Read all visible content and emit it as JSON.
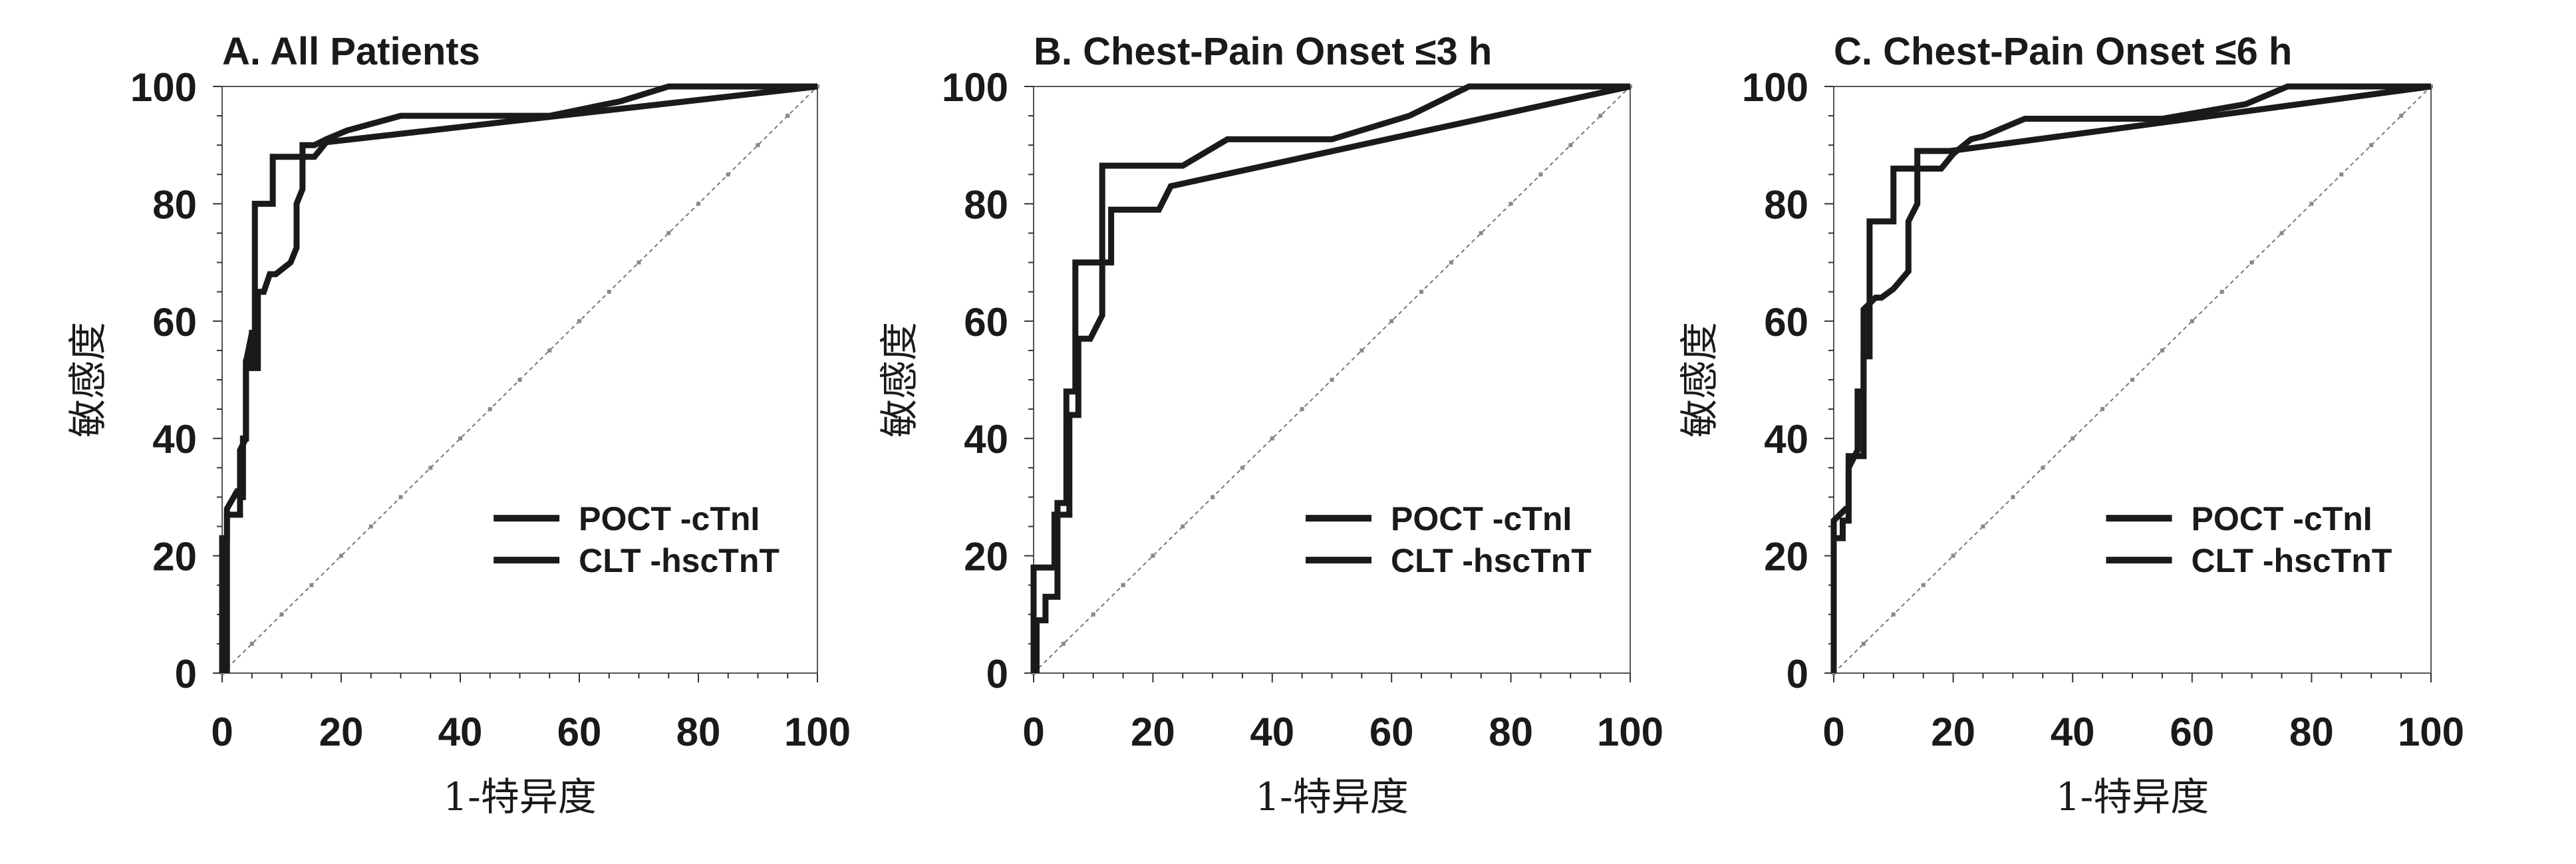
{
  "chart_data": [
    {
      "type": "line",
      "title": "A.   All Patients",
      "xlabel": "1-特异度",
      "ylabel": "敏感度",
      "xlim": [
        0,
        100
      ],
      "ylim": [
        0,
        100
      ],
      "xticks": [
        "0",
        "20",
        "40",
        "60",
        "80",
        "100"
      ],
      "yticks": [
        "0",
        "20",
        "40",
        "60",
        "80",
        "100"
      ],
      "grid": false,
      "legend_position": "bottom-right",
      "reference_line": "diagonal",
      "series": [
        {
          "name": "POCT -cTnI",
          "color": "#1a1a1a",
          "points": [
            [
              0,
              0
            ],
            [
              0,
              23
            ],
            [
              0.8,
              23
            ],
            [
              0.8,
              27
            ],
            [
              3,
              27
            ],
            [
              3,
              30
            ],
            [
              3.5,
              30
            ],
            [
              3.5,
              40
            ],
            [
              4,
              40
            ],
            [
              4,
              53
            ],
            [
              5,
              53
            ],
            [
              5,
              58
            ],
            [
              5.5,
              58
            ],
            [
              5.5,
              80
            ],
            [
              8.5,
              80
            ],
            [
              8.5,
              88
            ],
            [
              15.5,
              88
            ],
            [
              17.5,
              90.5
            ],
            [
              100,
              100
            ]
          ]
        },
        {
          "name": "CLT -hscTnT",
          "color": "#1a1a1a",
          "points": [
            [
              0.8,
              0
            ],
            [
              0.8,
              28
            ],
            [
              2.5,
              31
            ],
            [
              3,
              31
            ],
            [
              3,
              38
            ],
            [
              4,
              40
            ],
            [
              4,
              53
            ],
            [
              5,
              58
            ],
            [
              5,
              52
            ],
            [
              6,
              52
            ],
            [
              6,
              65
            ],
            [
              7,
              65
            ],
            [
              8,
              68
            ],
            [
              9,
              68
            ],
            [
              11.5,
              70
            ],
            [
              12.5,
              72.5
            ],
            [
              12.5,
              80
            ],
            [
              13.5,
              82.5
            ],
            [
              13.5,
              90
            ],
            [
              15.5,
              90
            ],
            [
              17.5,
              91
            ],
            [
              21,
              92.5
            ],
            [
              30,
              95
            ],
            [
              55,
              95
            ],
            [
              67,
              97.5
            ],
            [
              75,
              100
            ],
            [
              100,
              100
            ]
          ]
        }
      ]
    },
    {
      "type": "line",
      "title": "B.   Chest-Pain Onset ≤3 h",
      "xlabel": "1-特异度",
      "ylabel": "敏感度",
      "xlim": [
        0,
        100
      ],
      "ylim": [
        0,
        100
      ],
      "xticks": [
        "0",
        "20",
        "40",
        "60",
        "80",
        "100"
      ],
      "yticks": [
        "0",
        "20",
        "40",
        "60",
        "80",
        "100"
      ],
      "grid": false,
      "legend_position": "bottom-right",
      "reference_line": "diagonal",
      "series": [
        {
          "name": "POCT -cTnI",
          "color": "#1a1a1a",
          "points": [
            [
              0,
              0
            ],
            [
              0,
              18
            ],
            [
              3.5,
              18
            ],
            [
              3.5,
              27
            ],
            [
              6,
              27
            ],
            [
              6,
              44
            ],
            [
              7.5,
              44
            ],
            [
              7.5,
              57
            ],
            [
              9.5,
              57
            ],
            [
              11.5,
              61
            ],
            [
              11.5,
              86.5
            ],
            [
              25,
              86.5
            ],
            [
              32.5,
              91
            ],
            [
              50,
              91
            ],
            [
              63,
              95
            ],
            [
              73,
              100
            ],
            [
              100,
              100
            ]
          ]
        },
        {
          "name": "CLT -hscTnT",
          "color": "#1a1a1a",
          "points": [
            [
              0.5,
              0
            ],
            [
              0.5,
              9
            ],
            [
              2,
              9
            ],
            [
              2,
              13
            ],
            [
              4,
              13
            ],
            [
              4,
              29
            ],
            [
              5.5,
              29
            ],
            [
              5.5,
              48
            ],
            [
              7,
              48
            ],
            [
              7,
              70
            ],
            [
              13,
              70
            ],
            [
              13,
              79
            ],
            [
              21,
              79
            ],
            [
              23,
              83
            ],
            [
              100,
              100
            ]
          ]
        }
      ]
    },
    {
      "type": "line",
      "title": "C.   Chest-Pain Onset ≤6 h",
      "xlabel": "1-特异度",
      "ylabel": "敏感度",
      "xlim": [
        0,
        100
      ],
      "ylim": [
        0,
        100
      ],
      "xticks": [
        "0",
        "20",
        "40",
        "60",
        "80",
        "100"
      ],
      "yticks": [
        "0",
        "20",
        "40",
        "60",
        "80",
        "100"
      ],
      "grid": false,
      "legend_position": "bottom-right",
      "reference_line": "diagonal",
      "series": [
        {
          "name": "POCT -cTnI",
          "color": "#1a1a1a",
          "points": [
            [
              0,
              0
            ],
            [
              0,
              23
            ],
            [
              1.5,
              23
            ],
            [
              1.5,
              26
            ],
            [
              2.5,
              26
            ],
            [
              2.5,
              37
            ],
            [
              5,
              37
            ],
            [
              5,
              54
            ],
            [
              6,
              54
            ],
            [
              6,
              77
            ],
            [
              10,
              77
            ],
            [
              10,
              86
            ],
            [
              18,
              86
            ],
            [
              20,
              88.5
            ],
            [
              23,
              91
            ],
            [
              25,
              91.5
            ],
            [
              32,
              94.5
            ],
            [
              55,
              94.5
            ],
            [
              69,
              97
            ],
            [
              76,
              100
            ],
            [
              100,
              100
            ]
          ]
        },
        {
          "name": "CLT -hscTnT",
          "color": "#1a1a1a",
          "points": [
            [
              0,
              0
            ],
            [
              0,
              26
            ],
            [
              2,
              28
            ],
            [
              2.5,
              28
            ],
            [
              2.5,
              35
            ],
            [
              4,
              38
            ],
            [
              4,
              48
            ],
            [
              5,
              48
            ],
            [
              5,
              62
            ],
            [
              7,
              64
            ],
            [
              8,
              64
            ],
            [
              10,
              65.5
            ],
            [
              12.5,
              68.5
            ],
            [
              12.5,
              77
            ],
            [
              14,
              80
            ],
            [
              14,
              89
            ],
            [
              19.5,
              89
            ],
            [
              100,
              100
            ]
          ]
        }
      ]
    }
  ]
}
